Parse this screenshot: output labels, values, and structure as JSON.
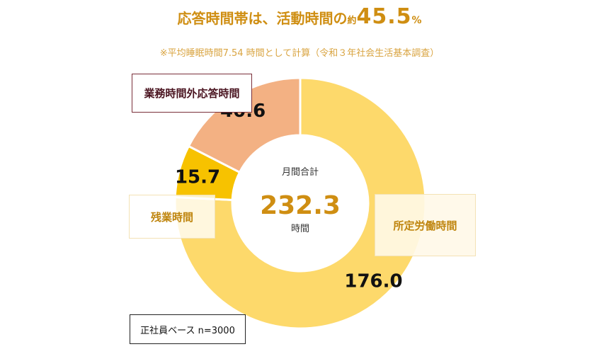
{
  "header": {
    "title_prefix": "応答時間帯は、活動時間の",
    "title_small": "約",
    "title_value": "45.5",
    "title_unit": "%",
    "subtitle": "※平均睡眠時間7.54 時間として計算（令和３年社会生活基本調査）"
  },
  "center": {
    "label": "月間合計",
    "value": "232.3",
    "unit": "時間"
  },
  "labels": {
    "outside_hours": "業務時間外応答時間",
    "overtime": "残業時間",
    "regular": "所定労働時間"
  },
  "sample_note": "正社員ベース n=3000",
  "colors": {
    "regular": "#fdd96b",
    "overtime": "#f7c200",
    "outside_hours": "#f3b183",
    "title": "#cf8e12",
    "value_text": "#111111"
  },
  "chart_data": {
    "type": "pie",
    "subtype": "donut",
    "unit": "時間",
    "total": 232.3,
    "slices": [
      {
        "name": "所定労働時間",
        "value": 176.0,
        "label": "176.0"
      },
      {
        "name": "残業時間",
        "value": 15.7,
        "label": "15.7"
      },
      {
        "name": "業務時間外応答時間",
        "value": 40.6,
        "label": "40.6"
      }
    ]
  }
}
